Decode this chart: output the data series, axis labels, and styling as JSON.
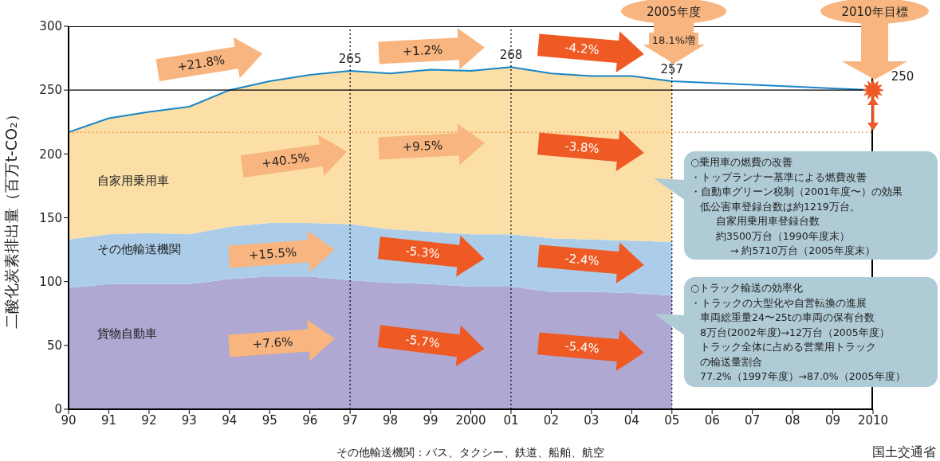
{
  "chart_data": {
    "type": "area",
    "ylabel": "二酸化炭素排出量（百万t-CO₂）",
    "categories": [
      "90",
      "91",
      "92",
      "93",
      "94",
      "95",
      "96",
      "97",
      "98",
      "99",
      "2000",
      "01",
      "02",
      "03",
      "04",
      "05",
      "06",
      "07",
      "08",
      "09",
      "2010"
    ],
    "stacked": true,
    "ylim": [
      0,
      300
    ],
    "yticks": [
      0,
      50,
      100,
      150,
      200,
      250,
      300
    ],
    "series": [
      {
        "name": "貨物自動車",
        "color": "#aea8d3",
        "values": [
          95,
          98,
          98,
          98,
          102,
          104,
          104,
          101,
          99,
          98,
          96,
          96,
          92,
          92,
          91,
          89,
          null,
          null,
          null,
          null,
          null
        ]
      },
      {
        "name": "その他輸送機関",
        "color": "#abcdea",
        "values": [
          38,
          39,
          40,
          39,
          41,
          42,
          42,
          44,
          42,
          41,
          41,
          41,
          42,
          41,
          41,
          42,
          null,
          null,
          null,
          null,
          null
        ]
      },
      {
        "name": "自家用乗用車",
        "color": "#fbdfa6",
        "values": [
          84,
          91,
          95,
          100,
          107,
          111,
          116,
          120,
          122,
          127,
          128,
          131,
          129,
          128,
          129,
          126,
          null,
          null,
          null,
          null,
          null
        ]
      },
      {
        "type": "line",
        "color": "#1a86c8",
        "values": [
          217,
          228,
          233,
          237,
          250,
          257,
          262,
          265,
          263,
          266,
          265,
          268,
          263,
          261,
          261,
          257,
          null,
          null,
          null,
          null,
          250
        ],
        "value_labels": [
          null,
          null,
          null,
          null,
          null,
          null,
          null,
          "265",
          null,
          null,
          null,
          "268",
          null,
          null,
          null,
          "257",
          null,
          null,
          null,
          null,
          "250"
        ]
      }
    ],
    "ref_lines": [
      {
        "axis": "y",
        "value": 250,
        "color": "#000000",
        "line_style": "solid"
      },
      {
        "axis": "y",
        "value": 217,
        "color": "#f08a3c",
        "line_style": "dotted"
      },
      {
        "axis": "x",
        "value": "97",
        "color": "#000000",
        "line_style": "dotted"
      },
      {
        "axis": "x",
        "value": "01",
        "color": "#000000",
        "line_style": "dotted"
      },
      {
        "axis": "x",
        "value": "05",
        "color": "#000000",
        "line_style": "dotted"
      }
    ],
    "annotations": [
      "+21.8%",
      "+1.2%",
      "-4.2%",
      "+40.5%",
      "+9.5%",
      "-3.8%",
      "+15.5%",
      "-5.3%",
      "-2.4%",
      "+7.6%",
      "-5.7%",
      "-5.4%",
      "2005年度",
      "18.1%増",
      "2010年目標",
      "○乗用車の燃費の改善",
      "・トップランナー基準による燃費改善",
      "・自動車グリーン税制（2001年度〜）の効果",
      "低公害車登録台数は約1219万台。",
      "自家用乗用車登録台数",
      "約3500万台（1990年度末）",
      "→ 約5710万台（2005年度末）",
      "○トラック輸送の効率化",
      "・トラックの大型化や自営転換の進展",
      "車両総重量24〜25tの車両の保有台数",
      "8万台(2002年度)→12万台（2005年度）",
      "トラック全体に占める営業用トラック",
      "の輸送量割合",
      "77.2%（1997年度）→87.0%（2005年度）",
      "その他輸送機関：バス、タクシー、鉄道、船舶、航空",
      "国土交通省"
    ]
  }
}
